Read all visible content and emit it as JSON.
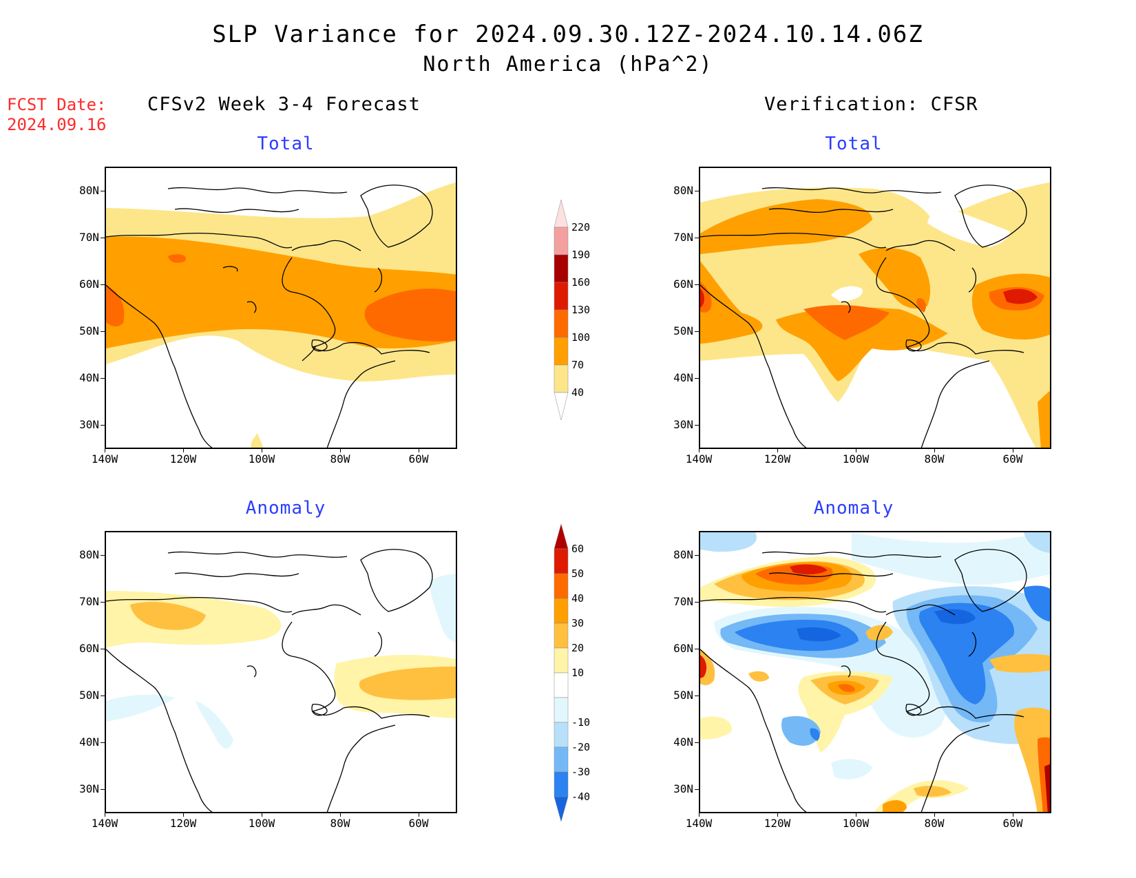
{
  "title": {
    "line1": "SLP Variance for 2024.09.30.12Z-2024.10.14.06Z",
    "line2": "North America (hPa^2)"
  },
  "fcst_date": {
    "label": "FCST Date:",
    "value": "2024.09.16"
  },
  "columns": {
    "left": "CFSv2 Week 3-4 Forecast",
    "right": "Verification: CFSR"
  },
  "panels": {
    "top_left": "Total",
    "top_right": "Total",
    "bottom_left": "Anomaly",
    "bottom_right": "Anomaly"
  },
  "axes": {
    "lat_labels": [
      "80N",
      "70N",
      "60N",
      "50N",
      "40N",
      "30N"
    ],
    "lon_labels": [
      "140W",
      "120W",
      "100W",
      "80W",
      "60W"
    ]
  },
  "colorbar_total": {
    "levels": [
      "40",
      "70",
      "100",
      "130",
      "160",
      "190",
      "220"
    ],
    "colors": [
      "#fde68a",
      "#ffa000",
      "#ff6a00",
      "#e01a00",
      "#a80000",
      "#f4a0a0",
      "#fde0e0"
    ]
  },
  "colorbar_anomaly": {
    "levels": [
      "-40",
      "-30",
      "-20",
      "-10",
      "10",
      "20",
      "30",
      "40",
      "50",
      "60"
    ],
    "colors": [
      "#1565e0",
      "#2b82f0",
      "#74b8f6",
      "#b8e0fb",
      "#e2f7fd",
      "#ffffff",
      "#fff4a8",
      "#ffc040",
      "#ffa000",
      "#ff6a00",
      "#e01a00",
      "#b00000"
    ]
  }
}
